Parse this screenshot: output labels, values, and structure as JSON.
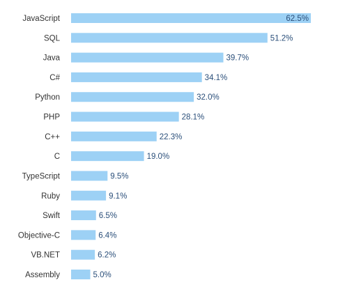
{
  "chart_data": {
    "type": "bar",
    "orientation": "horizontal",
    "categories": [
      "JavaScript",
      "SQL",
      "Java",
      "C#",
      "Python",
      "PHP",
      "C++",
      "C",
      "TypeScript",
      "Ruby",
      "Swift",
      "Objective-C",
      "VB.NET",
      "Assembly"
    ],
    "values": [
      62.5,
      51.2,
      39.7,
      34.1,
      32.0,
      28.1,
      22.3,
      19.0,
      9.5,
      9.1,
      6.5,
      6.4,
      6.2,
      5.0
    ],
    "value_labels": [
      "62.5%",
      "51.2%",
      "39.7%",
      "34.1%",
      "32.0%",
      "28.1%",
      "22.3%",
      "19.0%",
      "9.5%",
      "9.1%",
      "6.5%",
      "6.4%",
      "6.2%",
      "5.0%"
    ],
    "xlim": [
      0,
      62.5
    ],
    "grid": false,
    "legend": "none",
    "colors": {
      "bar": "#9dd1f5",
      "category_text": "#333333",
      "value_text": "#2b4f7a"
    }
  }
}
